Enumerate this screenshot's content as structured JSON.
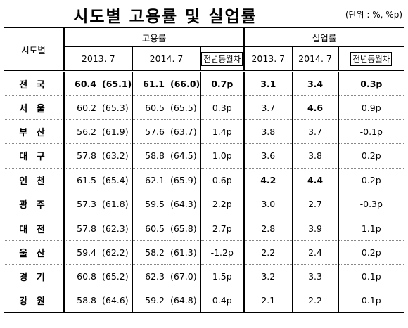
{
  "title": "시도별 고용률 및 실업률",
  "unit": "(단위 : %, %p)",
  "header": {
    "region": "시도별",
    "emp": "고용률",
    "unemp": "실업률",
    "y2013": "2013. 7",
    "y2014": "2014. 7",
    "diff": "전년동월차"
  },
  "rows": [
    {
      "name": "전국",
      "e13": "60.4",
      "e13p": "(65.1)",
      "e14": "61.1",
      "e14p": "(66.0)",
      "ed": "0.7p",
      "u13": "3.1",
      "u14": "3.4",
      "ud": "0.3p"
    },
    {
      "name": "서울",
      "e13": "60.2",
      "e13p": "(65.3)",
      "e14": "60.5",
      "e14p": "(65.5)",
      "ed": "0.3p",
      "u13": "3.7",
      "u14": "4.6",
      "ud": "0.9p"
    },
    {
      "name": "부산",
      "e13": "56.2",
      "e13p": "(61.9)",
      "e14": "57.6",
      "e14p": "(63.7)",
      "ed": "1.4p",
      "u13": "3.8",
      "u14": "3.7",
      "ud": "-0.1p"
    },
    {
      "name": "대구",
      "e13": "57.8",
      "e13p": "(63.2)",
      "e14": "58.8",
      "e14p": "(64.5)",
      "ed": "1.0p",
      "u13": "3.6",
      "u14": "3.8",
      "ud": "0.2p"
    },
    {
      "name": "인천",
      "e13": "61.5",
      "e13p": "(65.4)",
      "e14": "62.1",
      "e14p": "(65.9)",
      "ed": "0.6p",
      "u13": "4.2",
      "u14": "4.4",
      "ud": "0.2p"
    },
    {
      "name": "광주",
      "e13": "57.3",
      "e13p": "(61.8)",
      "e14": "59.5",
      "e14p": "(64.3)",
      "ed": "2.2p",
      "u13": "3.0",
      "u14": "2.7",
      "ud": "-0.3p"
    },
    {
      "name": "대전",
      "e13": "57.8",
      "e13p": "(62.3)",
      "e14": "60.5",
      "e14p": "(65.8)",
      "ed": "2.7p",
      "u13": "2.8",
      "u14": "3.9",
      "ud": "1.1p"
    },
    {
      "name": "울산",
      "e13": "59.4",
      "e13p": "(62.2)",
      "e14": "58.2",
      "e14p": "(61.3)",
      "ed": "-1.2p",
      "u13": "2.2",
      "u14": "2.4",
      "ud": "0.2p"
    },
    {
      "name": "경기",
      "e13": "60.8",
      "e13p": "(65.2)",
      "e14": "62.3",
      "e14p": "(67.0)",
      "ed": "1.5p",
      "u13": "3.2",
      "u14": "3.3",
      "ud": "0.1p"
    },
    {
      "name": "강원",
      "e13": "58.8",
      "e13p": "(64.6)",
      "e14": "59.2",
      "e14p": "(64.8)",
      "ed": "0.4p",
      "u13": "2.1",
      "u14": "2.2",
      "ud": "0.1p"
    }
  ]
}
